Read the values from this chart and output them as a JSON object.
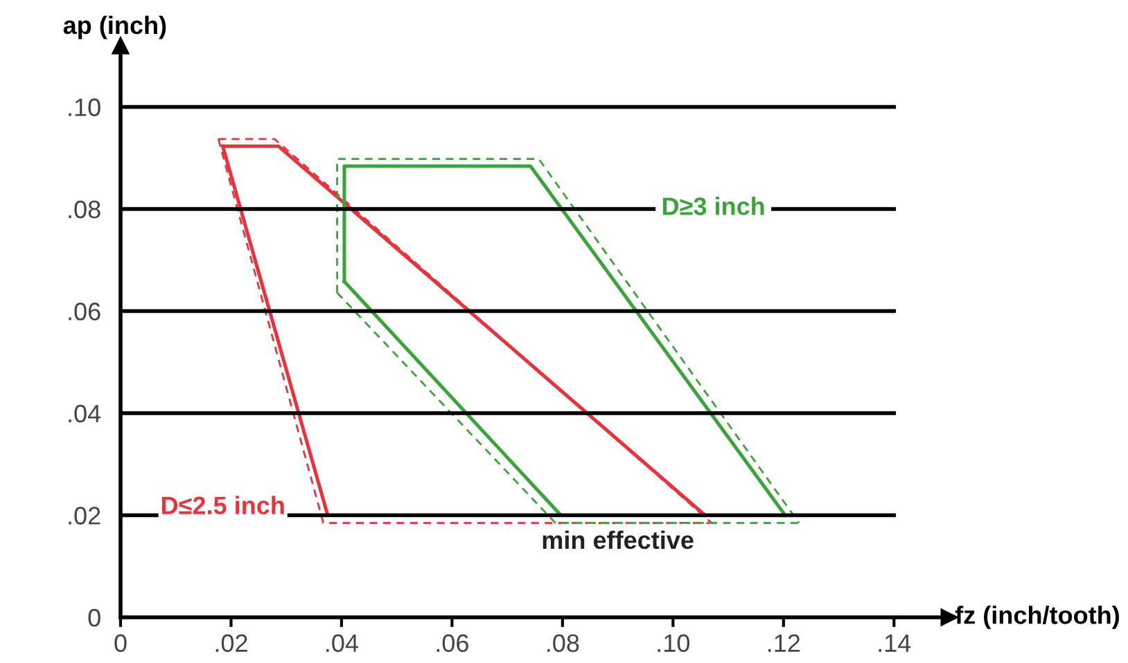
{
  "chart_data": {
    "type": "line",
    "xlabel": "fz (inch/tooth)",
    "ylabel": "ap (inch)",
    "xlim": [
      0,
      0.15
    ],
    "ylim": [
      0,
      0.112
    ],
    "xticks": [
      0,
      {
        "value": 0.02,
        "label": ".02"
      },
      {
        "value": 0.04,
        "label": ".04"
      },
      {
        "value": 0.06,
        "label": ".06"
      },
      {
        "value": 0.08,
        "label": ".08"
      },
      {
        "value": 0.1,
        "label": ".10"
      },
      {
        "value": 0.12,
        "label": ".12"
      },
      {
        "value": 0.14,
        "label": ".14"
      }
    ],
    "yticks": [
      0,
      {
        "value": 0.02,
        "label": ".02"
      },
      {
        "value": 0.04,
        "label": ".04"
      },
      {
        "value": 0.06,
        "label": ".06"
      },
      {
        "value": 0.08,
        "label": ".08"
      },
      {
        "value": 0.1,
        "label": ".10"
      }
    ],
    "grid": "y",
    "marker": "none",
    "annotations": [
      {
        "text": "min effective",
        "x": 0.09,
        "y": 0.02
      }
    ],
    "series": [
      {
        "color": "#e8323c",
        "line_style": "dashed",
        "x": [
          0.0177,
          0.0279,
          0.107
        ],
        "values": [
          0.0937,
          0.0937,
          0.0185
        ]
      },
      {
        "color": "#e8323c",
        "line_style": "dashed",
        "x": [
          0.0177,
          0.0367,
          0.107
        ],
        "values": [
          0.0937,
          0.0185,
          0.0185
        ]
      },
      {
        "color": "#e8323c",
        "line_style": "solid",
        "x": [
          0.0185,
          0.0286,
          0.1058
        ],
        "values": [
          0.0923,
          0.0923,
          0.02
        ]
      },
      {
        "name": "D≤2.5 inch",
        "color": "#e8323c",
        "line_style": "solid",
        "x": [
          0.0185,
          0.0375,
          0.1058
        ],
        "values": [
          0.0923,
          0.02,
          0.02
        ]
      },
      {
        "color": "#3aa33a",
        "line_style": "dashed",
        "x": [
          0.0392,
          0.0392,
          0.0757,
          0.1228
        ],
        "values": [
          0.0636,
          0.0898,
          0.0898,
          0.0185
        ]
      },
      {
        "color": "#3aa33a",
        "line_style": "dashed",
        "x": [
          0.0392,
          0.0787,
          0.1228
        ],
        "values": [
          0.0636,
          0.0185,
          0.0185
        ]
      },
      {
        "color": "#3aa33a",
        "line_style": "solid",
        "x": [
          0.0405,
          0.0797,
          0.1203
        ],
        "values": [
          0.0658,
          0.02,
          0.02
        ]
      },
      {
        "name": "D≥3 inch",
        "color": "#3aa33a",
        "line_style": "solid",
        "x": [
          0.0405,
          0.0405,
          0.0742,
          0.1203
        ],
        "values": [
          0.0658,
          0.0884,
          0.0884,
          0.02
        ]
      }
    ]
  }
}
